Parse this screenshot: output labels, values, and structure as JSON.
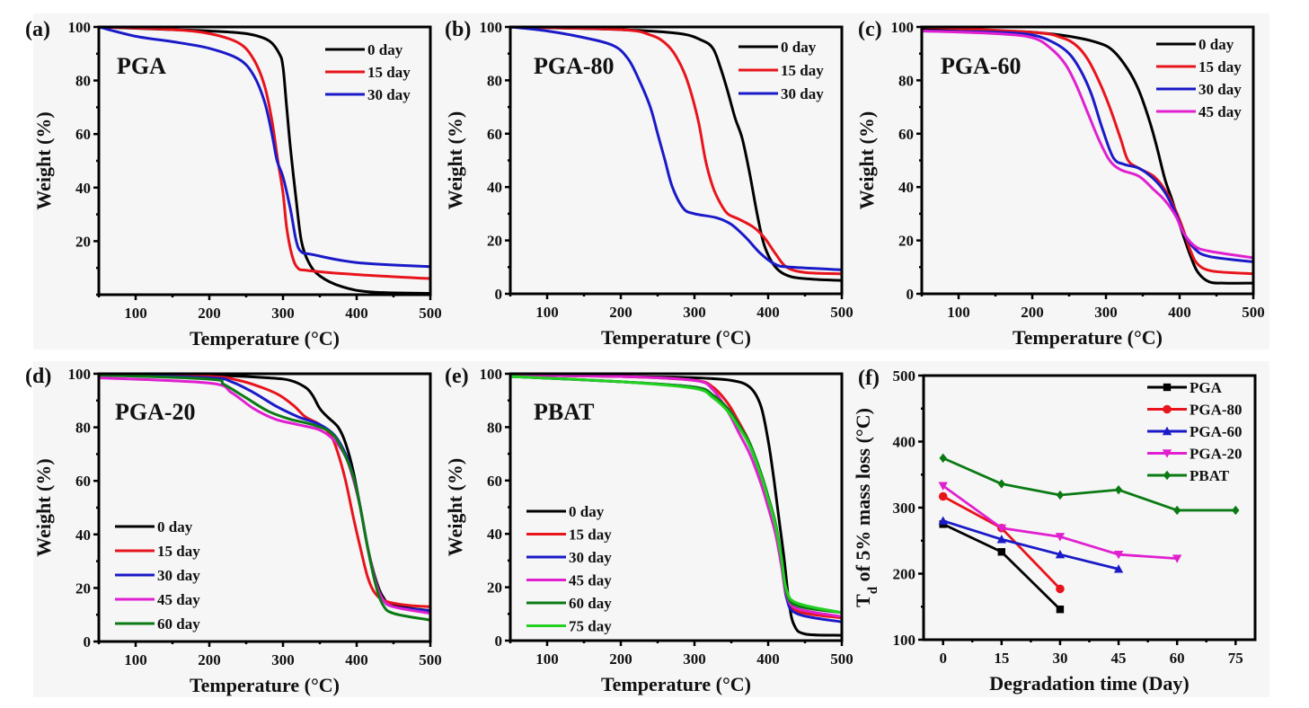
{
  "figure": {
    "colors": {
      "black": "#000000",
      "red": "#e8141c",
      "blue": "#1a1ac8",
      "magenta": "#e020d0",
      "dark_green": "#0b7a14",
      "bright_green": "#22d022",
      "panel_background": "#f6f6f6"
    }
  },
  "chart_data": [
    {
      "id": "a",
      "type": "line",
      "panel_letter": "(a)",
      "sample_label": "PGA",
      "xlabel": "Temperature (°C)",
      "ylabel": "Weight (%)",
      "xlim": [
        50,
        500
      ],
      "ylim": [
        0,
        100
      ],
      "xticks": [
        100,
        200,
        300,
        400,
        500
      ],
      "yticks": [
        20,
        40,
        60,
        80,
        100
      ],
      "legend_position": "top-right",
      "series": [
        {
          "name": "0 day",
          "color": "#000000",
          "x": [
            50,
            150,
            200,
            250,
            280,
            295,
            300,
            305,
            310,
            318,
            325,
            335,
            350,
            380,
            420,
            500
          ],
          "y": [
            100,
            99,
            98.5,
            97.5,
            95,
            90,
            85,
            70,
            55,
            35,
            20,
            12,
            7,
            3,
            1,
            0.5
          ]
        },
        {
          "name": "15 day",
          "color": "#e8141c",
          "x": [
            50,
            150,
            200,
            240,
            260,
            275,
            285,
            293,
            300,
            305,
            312,
            320,
            335,
            400,
            500
          ],
          "y": [
            100,
            99,
            97.5,
            94,
            88,
            78,
            65,
            50,
            38,
            25,
            15,
            10,
            9,
            7.5,
            6
          ]
        },
        {
          "name": "30 day",
          "color": "#1a1ac8",
          "x": [
            50,
            100,
            150,
            200,
            240,
            260,
            275,
            285,
            292,
            300,
            310,
            318,
            325,
            340,
            400,
            500
          ],
          "y": [
            100,
            96.5,
            94.5,
            92,
            88,
            82,
            72,
            60,
            50,
            44,
            32,
            20,
            16,
            15,
            12,
            10.5
          ]
        }
      ]
    },
    {
      "id": "b",
      "type": "line",
      "panel_letter": "(b)",
      "sample_label": "PGA-80",
      "xlabel": "Temperature (°C)",
      "ylabel": "Weight (%)",
      "xlim": [
        50,
        500
      ],
      "ylim": [
        0,
        100
      ],
      "xticks": [
        100,
        200,
        300,
        400,
        500
      ],
      "yticks": [
        0,
        20,
        40,
        60,
        80,
        100
      ],
      "legend_position": "top-right",
      "series": [
        {
          "name": "0 day",
          "color": "#000000",
          "x": [
            50,
            200,
            280,
            310,
            325,
            335,
            345,
            355,
            365,
            375,
            385,
            395,
            410,
            430,
            460,
            500
          ],
          "y": [
            100,
            99,
            97.5,
            95,
            92,
            85,
            76,
            66,
            58,
            45,
            30,
            18,
            10,
            6.5,
            5.5,
            5
          ]
        },
        {
          "name": "15 day",
          "color": "#e8141c",
          "x": [
            50,
            200,
            240,
            260,
            275,
            290,
            305,
            315,
            325,
            335,
            345,
            360,
            380,
            395,
            410,
            425,
            450,
            500
          ],
          "y": [
            100,
            99,
            97,
            94,
            89,
            80,
            65,
            50,
            40,
            34,
            30,
            28,
            25,
            21,
            15,
            10,
            8,
            7.5
          ]
        },
        {
          "name": "30 day",
          "color": "#1a1ac8",
          "x": [
            50,
            100,
            150,
            190,
            210,
            225,
            240,
            250,
            260,
            270,
            285,
            300,
            330,
            350,
            370,
            390,
            410,
            430,
            500
          ],
          "y": [
            100,
            98.5,
            96,
            93,
            88,
            80,
            70,
            60,
            50,
            40,
            32,
            30,
            28.5,
            26,
            21,
            15,
            11,
            10,
            9
          ]
        }
      ]
    },
    {
      "id": "c",
      "type": "line",
      "panel_letter": "(c)",
      "sample_label": "PGA-60",
      "xlabel": "Temperature (°C)",
      "ylabel": "Weight (%)",
      "xlim": [
        50,
        500
      ],
      "ylim": [
        0,
        100
      ],
      "xticks": [
        100,
        200,
        300,
        400,
        500
      ],
      "yticks": [
        0,
        20,
        40,
        60,
        80,
        100
      ],
      "legend_position": "top-right",
      "series": [
        {
          "name": "0 day",
          "color": "#000000",
          "x": [
            50,
            150,
            200,
            250,
            290,
            310,
            330,
            345,
            360,
            370,
            380,
            390,
            400,
            415,
            425,
            440,
            460,
            500
          ],
          "y": [
            99,
            98.5,
            98,
            96.5,
            94,
            91,
            84,
            76,
            64,
            54,
            43,
            35,
            26,
            14,
            8,
            4.5,
            4,
            4
          ]
        },
        {
          "name": "15 day",
          "color": "#e8141c",
          "x": [
            50,
            200,
            240,
            260,
            275,
            290,
            305,
            320,
            330,
            345,
            365,
            380,
            395,
            405,
            415,
            425,
            445,
            500
          ],
          "y": [
            100,
            98,
            96,
            93,
            88,
            80,
            70,
            58,
            50,
            47,
            44,
            39,
            31,
            24,
            16,
            11,
            8.5,
            7.5
          ]
        },
        {
          "name": "30 day",
          "color": "#1a1ac8",
          "x": [
            50,
            150,
            200,
            230,
            250,
            265,
            280,
            295,
            310,
            325,
            345,
            365,
            380,
            395,
            405,
            420,
            440,
            500
          ],
          "y": [
            98.5,
            98,
            97,
            94,
            90,
            84,
            75,
            62,
            51,
            48.5,
            47,
            43,
            38,
            30,
            23,
            17,
            14,
            12
          ]
        },
        {
          "name": "45 day",
          "color": "#e020d0",
          "x": [
            50,
            150,
            200,
            225,
            245,
            260,
            275,
            290,
            305,
            320,
            345,
            365,
            380,
            395,
            405,
            420,
            440,
            500
          ],
          "y": [
            98.5,
            97.5,
            96,
            92,
            86,
            78,
            68,
            58,
            50,
            46.5,
            44,
            39,
            35,
            29,
            23,
            18,
            16,
            13.5
          ]
        }
      ]
    },
    {
      "id": "d",
      "type": "line",
      "panel_letter": "(d)",
      "sample_label": "PGA-20",
      "xlabel": "Temperature (°C)",
      "ylabel": "Weight (%)",
      "xlim": [
        50,
        500
      ],
      "ylim": [
        0,
        100
      ],
      "xticks": [
        100,
        200,
        300,
        400,
        500
      ],
      "yticks": [
        0,
        20,
        40,
        60,
        80,
        100
      ],
      "legend_position": "bottom-left",
      "series": [
        {
          "name": "0 day",
          "color": "#000000",
          "x": [
            50,
            200,
            280,
            310,
            330,
            340,
            350,
            360,
            375,
            385,
            395,
            405,
            415,
            425,
            435,
            450,
            500
          ],
          "y": [
            100,
            99.5,
            98.5,
            97.5,
            95,
            92,
            87,
            84,
            80,
            74,
            64,
            50,
            35,
            24,
            17,
            13.5,
            11.5
          ]
        },
        {
          "name": "15 day",
          "color": "#e8141c",
          "x": [
            50,
            200,
            240,
            270,
            295,
            315,
            330,
            350,
            365,
            375,
            385,
            395,
            405,
            415,
            425,
            440,
            470,
            500
          ],
          "y": [
            100,
            99,
            97.5,
            95,
            92,
            88,
            84,
            81,
            77,
            70,
            60,
            47,
            35,
            24,
            18,
            15,
            13.5,
            13
          ]
        },
        {
          "name": "30 day",
          "color": "#1a1ac8",
          "x": [
            50,
            200,
            230,
            260,
            290,
            320,
            350,
            370,
            385,
            395,
            405,
            415,
            425,
            435,
            450,
            500
          ],
          "y": [
            99.5,
            98.5,
            97,
            93,
            88,
            84,
            81,
            77,
            70,
            62,
            50,
            35,
            23,
            16,
            13,
            11.5
          ]
        },
        {
          "name": "45 day",
          "color": "#e020d0",
          "x": [
            50,
            200,
            230,
            260,
            290,
            320,
            350,
            370,
            385,
            395,
            405,
            415,
            425,
            435,
            450,
            500
          ],
          "y": [
            98.5,
            96.5,
            93,
            87,
            83,
            81,
            79,
            75,
            69,
            61,
            50,
            35,
            23,
            16,
            13,
            10.5
          ]
        },
        {
          "name": "60 day",
          "color": "#0b7a14",
          "x": [
            50,
            200,
            220,
            250,
            280,
            310,
            340,
            365,
            380,
            395,
            405,
            415,
            425,
            435,
            450,
            500
          ],
          "y": [
            99.5,
            98,
            96,
            91,
            86,
            83,
            81,
            78,
            72,
            62,
            50,
            35,
            22,
            14,
            10.5,
            8
          ]
        }
      ]
    },
    {
      "id": "e",
      "type": "line",
      "panel_letter": "(e)",
      "sample_label": "PBAT",
      "xlabel": "Temperature (°C)",
      "ylabel": "Weight (%)",
      "xlim": [
        50,
        500
      ],
      "ylim": [
        0,
        100
      ],
      "xticks": [
        100,
        200,
        300,
        400,
        500
      ],
      "yticks": [
        0,
        20,
        40,
        60,
        80,
        100
      ],
      "legend_position": "bottom-left",
      "series": [
        {
          "name": "0 day",
          "color": "#000000",
          "x": [
            50,
            200,
            300,
            350,
            375,
            390,
            400,
            408,
            415,
            422,
            428,
            435,
            450,
            500
          ],
          "y": [
            99.5,
            99,
            98.5,
            97.5,
            95,
            88,
            75,
            60,
            45,
            30,
            15,
            6,
            2.5,
            2
          ]
        },
        {
          "name": "15 day",
          "color": "#e8141c",
          "x": [
            50,
            200,
            300,
            325,
            345,
            360,
            375,
            390,
            400,
            410,
            418,
            425,
            440,
            500
          ],
          "y": [
            99.5,
            99,
            97.5,
            95,
            89,
            82,
            74,
            62,
            52,
            42,
            30,
            17,
            11,
            8.5
          ]
        },
        {
          "name": "30 day",
          "color": "#1a1ac8",
          "x": [
            50,
            200,
            300,
            325,
            345,
            360,
            375,
            390,
            400,
            410,
            418,
            425,
            440,
            500
          ],
          "y": [
            99,
            97,
            95,
            92,
            87,
            81,
            73,
            62,
            53,
            43,
            30,
            16,
            10,
            7
          ]
        },
        {
          "name": "45 day",
          "color": "#e020d0",
          "x": [
            50,
            200,
            300,
            325,
            345,
            360,
            375,
            390,
            400,
            410,
            418,
            425,
            440,
            500
          ],
          "y": [
            99.5,
            99,
            97.5,
            94,
            86,
            78,
            70,
            59,
            50,
            40,
            28,
            17,
            12,
            9
          ]
        },
        {
          "name": "60 day",
          "color": "#0b7a14",
          "x": [
            50,
            200,
            300,
            325,
            345,
            360,
            375,
            390,
            400,
            410,
            418,
            425,
            440,
            500
          ],
          "y": [
            99,
            97,
            95,
            92,
            87,
            81,
            74,
            63,
            54,
            44,
            31,
            18,
            13,
            10.5
          ]
        },
        {
          "name": "75 day",
          "color": "#22d022",
          "x": [
            50,
            200,
            300,
            325,
            345,
            360,
            375,
            390,
            400,
            410,
            418,
            425,
            440,
            500
          ],
          "y": [
            99,
            97,
            94.5,
            91,
            86,
            80,
            73,
            62,
            53,
            43,
            31,
            19,
            14,
            10.5
          ]
        }
      ]
    },
    {
      "id": "f",
      "type": "line",
      "panel_letter": "(f)",
      "xlabel": "Degradation time (Day)",
      "ylabel_main": "T",
      "ylabel_sub": "d",
      "ylabel_rest": " of 5% mass loss (°C)",
      "xlim": [
        -5,
        80
      ],
      "ylim": [
        100,
        500
      ],
      "xticks": [
        0,
        15,
        30,
        45,
        60,
        75
      ],
      "yticks": [
        100,
        200,
        300,
        400,
        500
      ],
      "legend_position": "top-right",
      "series": [
        {
          "name": "PGA",
          "color": "#000000",
          "marker": "square",
          "x": [
            0,
            15,
            30
          ],
          "y": [
            275,
            233,
            146
          ]
        },
        {
          "name": "PGA-80",
          "color": "#e8141c",
          "marker": "circle",
          "x": [
            0,
            15,
            30
          ],
          "y": [
            317,
            269,
            177
          ]
        },
        {
          "name": "PGA-60",
          "color": "#1a1ac8",
          "marker": "triangle-up",
          "x": [
            0,
            15,
            30,
            45
          ],
          "y": [
            280,
            252,
            229,
            207
          ]
        },
        {
          "name": "PGA-20",
          "color": "#e020d0",
          "marker": "triangle-down",
          "x": [
            0,
            15,
            30,
            45,
            60
          ],
          "y": [
            333,
            269,
            256,
            229,
            223
          ]
        },
        {
          "name": "PBAT",
          "color": "#0b7a14",
          "marker": "diamond",
          "x": [
            0,
            15,
            30,
            45,
            60,
            75
          ],
          "y": [
            375,
            336,
            319,
            327,
            296,
            296
          ]
        }
      ]
    }
  ]
}
